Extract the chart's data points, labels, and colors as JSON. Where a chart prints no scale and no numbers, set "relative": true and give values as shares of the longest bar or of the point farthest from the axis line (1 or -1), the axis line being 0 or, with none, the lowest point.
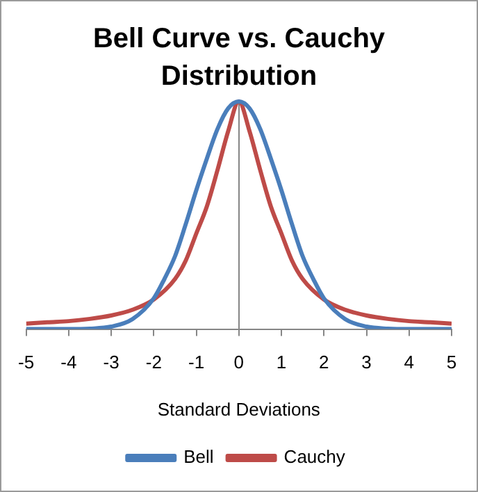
{
  "chart_data": {
    "type": "line",
    "title": "Bell Curve vs. Cauchy Distribution",
    "xlabel": "Standard Deviations",
    "relative": true,
    "xlim": [
      -5,
      5
    ],
    "xticks": [
      -5,
      -4,
      -3,
      -2,
      -1,
      0,
      1,
      2,
      3,
      4,
      5
    ],
    "legend": "bottom",
    "marker": "none",
    "line_style": "solid",
    "series": [
      {
        "name": "Bell",
        "color": "#4a7ebb",
        "x": [
          -5,
          -4.5,
          -4,
          -3.5,
          -3,
          -2.5,
          -2,
          -1.75,
          -1.5,
          -1.25,
          -1,
          -0.75,
          -0.5,
          -0.25,
          0,
          0.25,
          0.5,
          0.75,
          1,
          1.25,
          1.5,
          1.75,
          2,
          2.5,
          3,
          3.5,
          4,
          4.5,
          5
        ],
        "values": [
          0,
          0,
          0,
          0.002,
          0.011,
          0.044,
          0.135,
          0.22,
          0.32,
          0.46,
          0.61,
          0.75,
          0.88,
          0.97,
          1,
          0.97,
          0.88,
          0.75,
          0.61,
          0.46,
          0.32,
          0.22,
          0.135,
          0.044,
          0.011,
          0.002,
          0,
          0,
          0
        ]
      },
      {
        "name": "Cauchy",
        "color": "#be4b48",
        "x": [
          -5,
          -4.5,
          -4,
          -3.5,
          -3,
          -2.5,
          -2,
          -1.5,
          -1.25,
          -1,
          -0.75,
          -0.5,
          -0.25,
          0,
          0.25,
          0.5,
          0.75,
          1,
          1.25,
          1.5,
          2,
          2.5,
          3,
          3.5,
          4,
          4.5,
          5
        ],
        "values": [
          0.024,
          0.03,
          0.035,
          0.045,
          0.06,
          0.085,
          0.13,
          0.22,
          0.3,
          0.42,
          0.54,
          0.7,
          0.87,
          1,
          0.87,
          0.7,
          0.54,
          0.42,
          0.3,
          0.22,
          0.13,
          0.085,
          0.06,
          0.045,
          0.035,
          0.03,
          0.024
        ]
      }
    ]
  }
}
